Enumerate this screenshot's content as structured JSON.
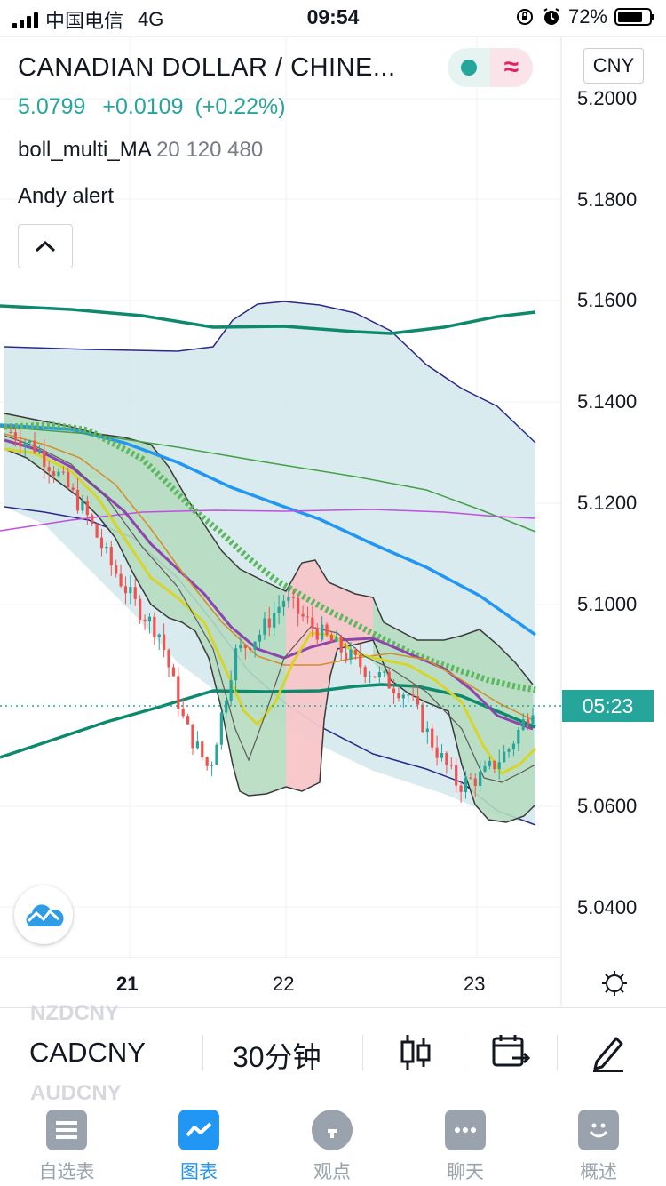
{
  "status_bar": {
    "carrier": "中国电信",
    "network": "4G",
    "time": "09:54",
    "battery": "72%"
  },
  "header": {
    "symbol_title": "CANADIAN DOLLAR / CHINE...",
    "currency": "CNY",
    "toggle_icon": "≈"
  },
  "quote": {
    "price": "5.0799",
    "change": "+0.0109",
    "change_pct": "(+0.22%)"
  },
  "indicators": [
    {
      "name": "boll_multi_MA",
      "params": "20 120 480"
    },
    {
      "name": "Andy alert",
      "params": ""
    }
  ],
  "colors": {
    "accent": "#26a69a",
    "active_tab": "#2196f3",
    "inactive": "#9aa3ad"
  },
  "chart_data": {
    "type": "candlestick",
    "y_axis": {
      "ticks": [
        "5.2000",
        "5.1800",
        "5.1600",
        "5.1400",
        "5.1200",
        "5.1000",
        "5.0600",
        "5.0400"
      ],
      "range": [
        5.035,
        5.205
      ]
    },
    "x_axis": {
      "ticks": [
        "21",
        "22",
        "23"
      ]
    },
    "last_price": 5.0799,
    "countdown_label": "05:23",
    "series": [
      {
        "name": "MA upper envelope",
        "color": "#0d8a6e",
        "values": [
          5.1585,
          5.1575,
          5.155,
          5.1545,
          5.154,
          5.1535,
          5.1545,
          5.1575
        ]
      },
      {
        "name": "MA lower envelope",
        "color": "#0d8a6e",
        "values": [
          5.07,
          5.0765,
          5.0825,
          5.0855,
          5.087,
          5.0875,
          5.0855,
          5.0815
        ]
      },
      {
        "name": "MA 120",
        "color": "#2196f3",
        "values": [
          5.132,
          5.128,
          5.1235,
          5.1195,
          5.1155,
          5.108,
          5.101,
          5.094
        ]
      },
      {
        "name": "MA 480",
        "color": "#4caf50",
        "values": [
          5.132,
          5.1305,
          5.128,
          5.1255,
          5.1225,
          5.1195,
          5.1145
        ]
      },
      {
        "name": "MA 480 purple",
        "color": "#c04ee0",
        "values": [
          5.1165,
          5.1175,
          5.1185,
          5.1182,
          5.1185,
          5.1178,
          5.1165
        ]
      },
      {
        "name": "close",
        "color": "#26a69a",
        "values": [
          5.134,
          5.131,
          5.125,
          5.118,
          5.108,
          5.1,
          5.094,
          5.076,
          5.067,
          5.09,
          5.094,
          5.101,
          5.096,
          5.092,
          5.088,
          5.085,
          5.082,
          5.072,
          5.064,
          5.066,
          5.071,
          5.0799
        ]
      }
    ]
  },
  "toolbar": {
    "symbol": "CADCNY",
    "symbol_prev": "NZDCNY",
    "symbol_next": "AUDCNY",
    "interval": "30分钟"
  },
  "tabs": [
    {
      "label": "自选表",
      "icon": "watchlist-icon",
      "active": false
    },
    {
      "label": "图表",
      "icon": "chart-icon",
      "active": true
    },
    {
      "label": "观点",
      "icon": "ideas-icon",
      "active": false
    },
    {
      "label": "聊天",
      "icon": "chat-icon",
      "active": false
    },
    {
      "label": "概述",
      "icon": "overview-icon",
      "active": false
    }
  ]
}
